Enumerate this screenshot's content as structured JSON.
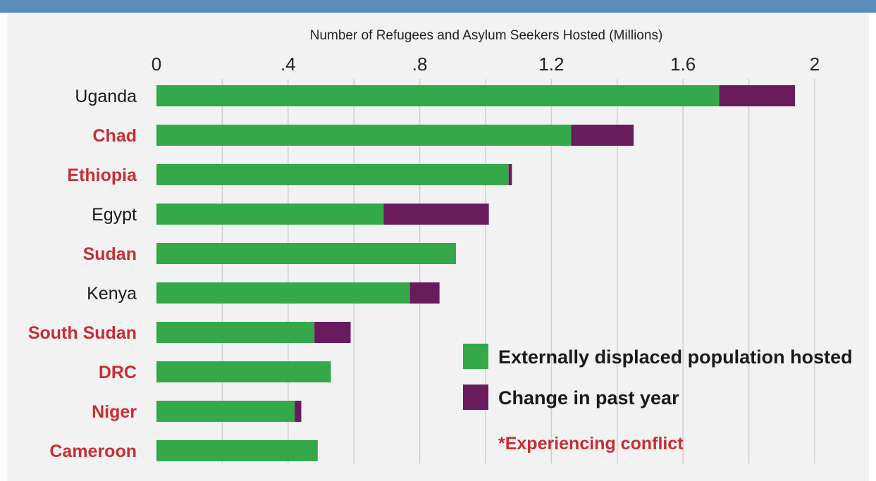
{
  "colors": {
    "top_band": "#5b8db8",
    "background": "#f2f2f2",
    "green": "#35a84a",
    "purple": "#6a1b5e",
    "conflict_red": "#c62f35",
    "normal_text": "#1a1a1a",
    "grid": "#cfcfcf"
  },
  "chart_data": {
    "type": "bar",
    "orientation": "horizontal",
    "stacked": true,
    "title": "Number of Refugees and Asylum Seekers Hosted (Millions)",
    "xlim": [
      0,
      2
    ],
    "x_ticks": [
      0,
      0.4,
      0.8,
      1.2,
      1.6,
      2
    ],
    "x_tick_labels": [
      "0",
      ".4",
      ".8",
      "1.2",
      "1.6",
      "2"
    ],
    "grid": true,
    "legend_position": "bottom-right",
    "categories": [
      "Uganda",
      "Chad",
      "Ethiopia",
      "Egypt",
      "Sudan",
      "Kenya",
      "South Sudan",
      "DRC",
      "Niger",
      "Cameroon"
    ],
    "conflict": [
      false,
      true,
      true,
      false,
      true,
      false,
      true,
      true,
      true,
      true
    ],
    "series": [
      {
        "name": "Externally displaced population hosted",
        "values": [
          1.71,
          1.26,
          1.07,
          0.69,
          0.91,
          0.77,
          0.48,
          0.53,
          0.42,
          0.49
        ]
      },
      {
        "name": "Change in past year",
        "values": [
          0.23,
          0.19,
          0.01,
          0.32,
          0,
          0.09,
          0.11,
          0,
          0.02,
          0
        ]
      }
    ],
    "note": "*Experiencing conflict"
  }
}
